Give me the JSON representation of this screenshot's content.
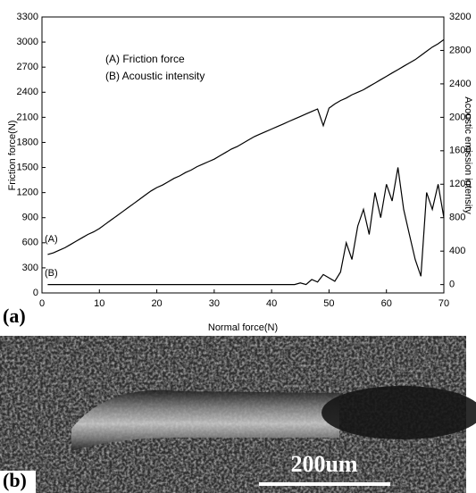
{
  "chart_data": {
    "type": "line",
    "panel_label": "(a)",
    "xlabel": "Normal force(N)",
    "ylabel": "Friction force(N)",
    "y2label": "Acoustic emission intensity",
    "xlim": [
      0,
      70
    ],
    "xticks": [
      0,
      10,
      20,
      30,
      40,
      50,
      60,
      70
    ],
    "ylim": [
      0,
      3300
    ],
    "yticks": [
      0,
      300,
      600,
      900,
      1200,
      1500,
      1800,
      2100,
      2400,
      2700,
      3000,
      3300
    ],
    "y2lim": [
      -100,
      3200
    ],
    "y2ticks": [
      0,
      400,
      800,
      1200,
      1600,
      2000,
      2400,
      2800,
      3200
    ],
    "legend": [
      "(A) Friction force",
      "(B) Acoustic intensity"
    ],
    "annotations": [
      "(A)",
      "(B)"
    ],
    "series": [
      {
        "name": "(A)",
        "color": "#000000",
        "x": [
          1,
          2,
          3,
          4,
          5,
          6,
          7,
          8,
          9,
          10,
          11,
          12,
          13,
          14,
          15,
          16,
          17,
          18,
          19,
          20,
          21,
          22,
          23,
          24,
          25,
          26,
          27,
          28,
          29,
          30,
          31,
          32,
          33,
          34,
          35,
          36,
          37,
          38,
          39,
          40,
          41,
          42,
          43,
          44,
          45,
          46,
          47,
          48,
          49,
          50,
          51,
          52,
          53,
          54,
          55,
          56,
          57,
          58,
          59,
          60,
          61,
          62,
          63,
          64,
          65,
          66,
          67,
          68,
          69,
          70
        ],
        "values": [
          460,
          480,
          510,
          540,
          580,
          620,
          660,
          700,
          730,
          770,
          820,
          870,
          920,
          970,
          1020,
          1070,
          1120,
          1170,
          1220,
          1260,
          1290,
          1330,
          1370,
          1400,
          1440,
          1470,
          1510,
          1540,
          1570,
          1600,
          1640,
          1680,
          1720,
          1750,
          1790,
          1830,
          1870,
          1900,
          1930,
          1960,
          1990,
          2020,
          2050,
          2080,
          2110,
          2140,
          2170,
          2200,
          2000,
          2210,
          2260,
          2300,
          2330,
          2370,
          2400,
          2430,
          2470,
          2510,
          2550,
          2590,
          2630,
          2670,
          2710,
          2750,
          2790,
          2840,
          2890,
          2940,
          2980,
          3030
        ]
      },
      {
        "name": "(B)",
        "color": "#000000",
        "axis": "y2",
        "x": [
          1,
          2,
          3,
          4,
          5,
          6,
          7,
          8,
          9,
          10,
          11,
          12,
          13,
          14,
          15,
          16,
          17,
          18,
          19,
          20,
          21,
          22,
          23,
          24,
          25,
          26,
          27,
          28,
          29,
          30,
          31,
          32,
          33,
          34,
          35,
          36,
          37,
          38,
          39,
          40,
          41,
          42,
          43,
          44,
          45,
          46,
          47,
          48,
          49,
          50,
          51,
          52,
          53,
          54,
          55,
          56,
          57,
          58,
          59,
          60,
          61,
          62,
          63,
          64,
          65,
          66,
          67,
          68,
          69,
          70
        ],
        "values": [
          0,
          0,
          0,
          0,
          0,
          0,
          0,
          0,
          0,
          0,
          0,
          0,
          0,
          0,
          0,
          0,
          0,
          0,
          0,
          0,
          0,
          0,
          0,
          0,
          0,
          0,
          0,
          0,
          0,
          0,
          0,
          0,
          0,
          0,
          0,
          0,
          0,
          0,
          0,
          0,
          0,
          0,
          0,
          0,
          20,
          0,
          60,
          30,
          120,
          80,
          40,
          150,
          500,
          300,
          700,
          900,
          600,
          1100,
          800,
          1200,
          1000,
          1400,
          900,
          600,
          300,
          100,
          1100,
          900,
          1200,
          800
        ]
      }
    ]
  },
  "image": {
    "panel_label": "(b)",
    "scale_bar": "200um"
  }
}
